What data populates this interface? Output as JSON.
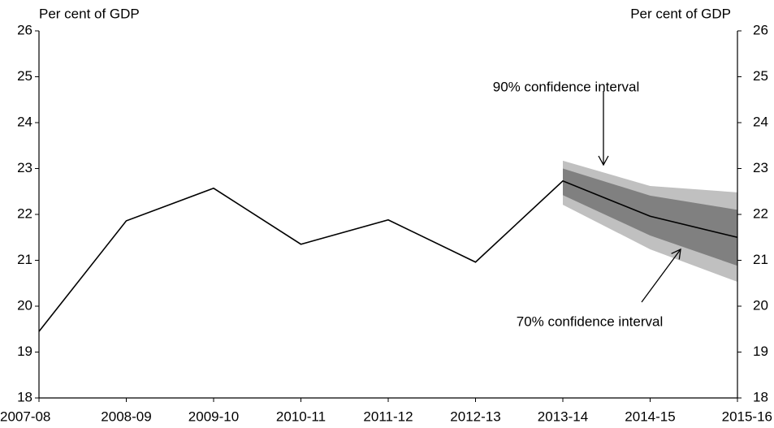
{
  "chart_data": {
    "type": "line",
    "y_label": "Per cent of GDP",
    "y2_label": "Per cent of GDP",
    "categories": [
      "2007-08",
      "2008-09",
      "2009-10",
      "2010-11",
      "2011-12",
      "2012-13",
      "2013-14",
      "2014-15",
      "2015-16"
    ],
    "series": [
      {
        "color": "#000000",
        "values": [
          19.45,
          21.86,
          22.57,
          21.35,
          21.88,
          20.96,
          22.73,
          21.96,
          21.5
        ]
      }
    ],
    "bands": [
      {
        "label": "90% confidence interval",
        "color": "#c0c0c0",
        "upper": [
          null,
          null,
          null,
          null,
          null,
          null,
          23.17,
          22.62,
          22.48
        ],
        "lower": [
          null,
          null,
          null,
          null,
          null,
          null,
          22.21,
          21.24,
          20.53
        ]
      },
      {
        "label": "70% confidence interval",
        "color": "#808080",
        "upper": [
          null,
          null,
          null,
          null,
          null,
          null,
          23.0,
          22.41,
          22.1
        ],
        "lower": [
          null,
          null,
          null,
          null,
          null,
          null,
          22.42,
          21.54,
          20.88
        ]
      }
    ],
    "ylim": [
      18,
      26
    ],
    "yticks": [
      18,
      19,
      20,
      21,
      22,
      23,
      24,
      25,
      26
    ],
    "y2lim": [
      18,
      26
    ],
    "y2ticks": [
      18,
      19,
      20,
      21,
      22,
      23,
      24,
      25,
      26
    ]
  }
}
